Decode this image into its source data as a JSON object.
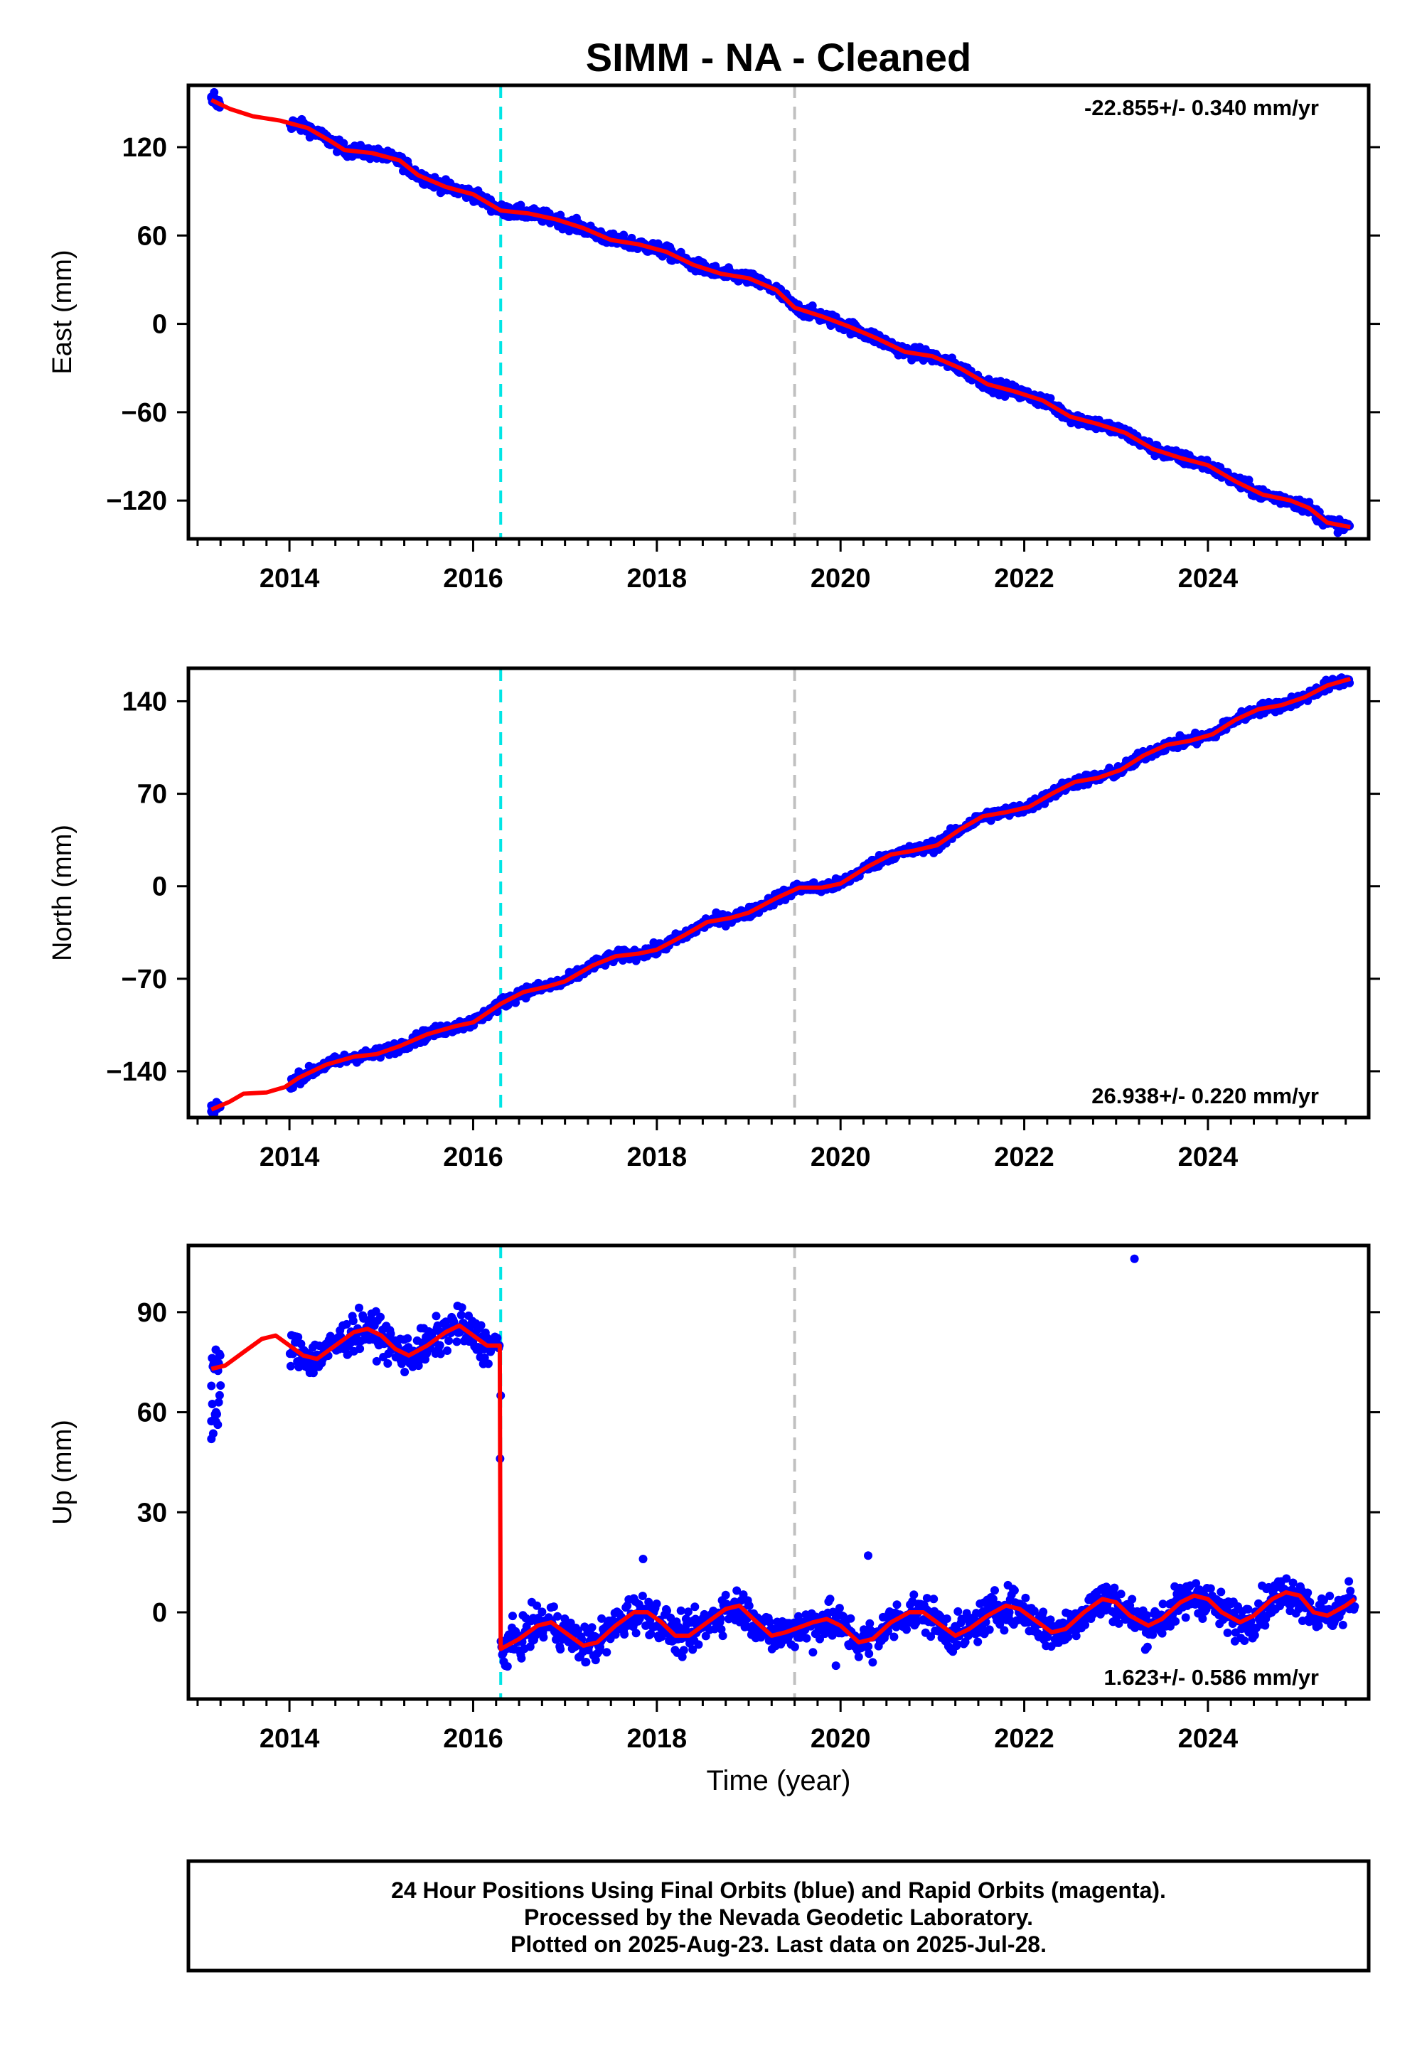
{
  "title": "SIMM  - NA - Cleaned",
  "colors": {
    "points": "#0000ff",
    "model": "#ff0000",
    "event_cyan": "#00e5e5",
    "event_gray": "#c0c0c0"
  },
  "chart_data": [
    {
      "type": "scatter",
      "ylabel": "East (mm)",
      "xlabel": "",
      "rate": "-22.855+/- 0.340 mm/yr",
      "xlim": [
        2012.9,
        2025.75
      ],
      "ylim": [
        -146,
        162
      ],
      "yticks": [
        120,
        60,
        0,
        -60,
        -120
      ],
      "xticks": [
        2014,
        2016,
        2018,
        2020,
        2022,
        2024
      ],
      "events": [
        2016.3,
        2019.5
      ],
      "gap": [
        2013.25,
        2014.0
      ],
      "model": [
        [
          2013.15,
          152
        ],
        [
          2013.35,
          146
        ],
        [
          2013.6,
          141
        ],
        [
          2013.9,
          138
        ],
        [
          2014.2,
          133
        ],
        [
          2014.45,
          124
        ],
        [
          2014.6,
          118
        ],
        [
          2014.9,
          116
        ],
        [
          2015.2,
          111
        ],
        [
          2015.4,
          101
        ],
        [
          2015.7,
          93
        ],
        [
          2016.0,
          88
        ],
        [
          2016.3,
          77
        ],
        [
          2016.6,
          75
        ],
        [
          2016.9,
          71
        ],
        [
          2017.2,
          65
        ],
        [
          2017.5,
          57
        ],
        [
          2017.8,
          54
        ],
        [
          2018.1,
          49
        ],
        [
          2018.4,
          40
        ],
        [
          2018.7,
          34
        ],
        [
          2019.0,
          31
        ],
        [
          2019.3,
          23
        ],
        [
          2019.5,
          11
        ],
        [
          2019.8,
          5
        ],
        [
          2020.1,
          -2
        ],
        [
          2020.4,
          -10
        ],
        [
          2020.7,
          -19
        ],
        [
          2021.0,
          -22
        ],
        [
          2021.3,
          -30
        ],
        [
          2021.6,
          -41
        ],
        [
          2021.9,
          -46
        ],
        [
          2022.2,
          -52
        ],
        [
          2022.5,
          -63
        ],
        [
          2022.8,
          -68
        ],
        [
          2023.1,
          -74
        ],
        [
          2023.4,
          -85
        ],
        [
          2023.7,
          -91
        ],
        [
          2024.0,
          -96
        ],
        [
          2024.3,
          -107
        ],
        [
          2024.6,
          -116
        ],
        [
          2024.9,
          -120
        ],
        [
          2025.1,
          -125
        ],
        [
          2025.3,
          -135
        ],
        [
          2025.55,
          -138
        ]
      ],
      "noise": 3,
      "outliers": []
    },
    {
      "type": "scatter",
      "ylabel": "North (mm)",
      "xlabel": "",
      "rate": "26.938+/- 0.220 mm/yr",
      "xlim": [
        2012.9,
        2025.75
      ],
      "ylim": [
        -175,
        165
      ],
      "yticks": [
        140,
        70,
        0,
        -70,
        -140
      ],
      "xticks": [
        2014,
        2016,
        2018,
        2020,
        2022,
        2024
      ],
      "events": [
        2016.3,
        2019.5
      ],
      "gap": [
        2013.25,
        2014.0
      ],
      "model": [
        [
          2013.15,
          -169
        ],
        [
          2013.35,
          -163
        ],
        [
          2013.5,
          -157
        ],
        [
          2013.75,
          -156
        ],
        [
          2013.95,
          -152
        ],
        [
          2014.1,
          -145
        ],
        [
          2014.4,
          -135
        ],
        [
          2014.7,
          -129
        ],
        [
          2014.95,
          -127
        ],
        [
          2015.2,
          -121
        ],
        [
          2015.5,
          -112
        ],
        [
          2015.8,
          -106
        ],
        [
          2016.0,
          -103
        ],
        [
          2016.3,
          -89
        ],
        [
          2016.55,
          -80
        ],
        [
          2016.8,
          -76
        ],
        [
          2017.0,
          -72
        ],
        [
          2017.3,
          -60
        ],
        [
          2017.55,
          -53
        ],
        [
          2017.8,
          -51
        ],
        [
          2018.0,
          -48
        ],
        [
          2018.3,
          -37
        ],
        [
          2018.55,
          -27
        ],
        [
          2018.8,
          -24
        ],
        [
          2019.0,
          -20
        ],
        [
          2019.3,
          -9
        ],
        [
          2019.55,
          -1
        ],
        [
          2019.8,
          -1
        ],
        [
          2020.0,
          2
        ],
        [
          2020.3,
          15
        ],
        [
          2020.55,
          24
        ],
        [
          2020.8,
          27
        ],
        [
          2021.05,
          31
        ],
        [
          2021.3,
          43
        ],
        [
          2021.55,
          53
        ],
        [
          2021.8,
          56
        ],
        [
          2022.05,
          60
        ],
        [
          2022.3,
          70
        ],
        [
          2022.55,
          79
        ],
        [
          2022.8,
          82
        ],
        [
          2023.05,
          88
        ],
        [
          2023.3,
          99
        ],
        [
          2023.55,
          107
        ],
        [
          2023.8,
          110
        ],
        [
          2024.05,
          115
        ],
        [
          2024.3,
          126
        ],
        [
          2024.55,
          134
        ],
        [
          2024.8,
          137
        ],
        [
          2025.05,
          143
        ],
        [
          2025.3,
          152
        ],
        [
          2025.55,
          157
        ]
      ],
      "noise": 3,
      "outliers": []
    },
    {
      "type": "scatter",
      "ylabel": "Up (mm)",
      "xlabel": "Time (year)",
      "rate": "1.623+/- 0.586 mm/yr",
      "xlim": [
        2012.9,
        2025.75
      ],
      "ylim": [
        -26,
        110
      ],
      "yticks": [
        90,
        60,
        30,
        0
      ],
      "xticks": [
        2014,
        2016,
        2018,
        2020,
        2022,
        2024
      ],
      "events": [
        2016.3,
        2019.5
      ],
      "gap": [
        2013.25,
        2014.0
      ],
      "model": [
        [
          2013.15,
          73
        ],
        [
          2013.3,
          74
        ],
        [
          2013.5,
          78
        ],
        [
          2013.7,
          82
        ],
        [
          2013.85,
          83
        ],
        [
          2014.0,
          80
        ],
        [
          2014.15,
          77
        ],
        [
          2014.3,
          76
        ],
        [
          2014.5,
          80
        ],
        [
          2014.7,
          84
        ],
        [
          2014.85,
          85
        ],
        [
          2015.0,
          83
        ],
        [
          2015.15,
          79
        ],
        [
          2015.3,
          77
        ],
        [
          2015.5,
          80
        ],
        [
          2015.7,
          84
        ],
        [
          2015.85,
          86
        ],
        [
          2016.0,
          83
        ],
        [
          2016.15,
          80
        ],
        [
          2016.29,
          80
        ],
        [
          2016.3,
          -11
        ],
        [
          2016.5,
          -8
        ],
        [
          2016.7,
          -4
        ],
        [
          2016.85,
          -3
        ],
        [
          2017.0,
          -6
        ],
        [
          2017.2,
          -10
        ],
        [
          2017.35,
          -9
        ],
        [
          2017.55,
          -4
        ],
        [
          2017.75,
          0
        ],
        [
          2017.9,
          0
        ],
        [
          2018.05,
          -3
        ],
        [
          2018.2,
          -7
        ],
        [
          2018.35,
          -7
        ],
        [
          2018.55,
          -3
        ],
        [
          2018.75,
          1
        ],
        [
          2018.9,
          2
        ],
        [
          2019.05,
          -2
        ],
        [
          2019.25,
          -7
        ],
        [
          2019.4,
          -6
        ],
        [
          2019.5,
          -5
        ],
        [
          2019.7,
          -3
        ],
        [
          2019.85,
          -2
        ],
        [
          2020.0,
          -4
        ],
        [
          2020.2,
          -9
        ],
        [
          2020.35,
          -8
        ],
        [
          2020.55,
          -3
        ],
        [
          2020.75,
          0
        ],
        [
          2020.9,
          0
        ],
        [
          2021.05,
          -3
        ],
        [
          2021.25,
          -7
        ],
        [
          2021.4,
          -5
        ],
        [
          2021.6,
          -1
        ],
        [
          2021.8,
          2
        ],
        [
          2021.95,
          1
        ],
        [
          2022.1,
          -2
        ],
        [
          2022.3,
          -6
        ],
        [
          2022.45,
          -5
        ],
        [
          2022.65,
          0
        ],
        [
          2022.85,
          4
        ],
        [
          2023.0,
          3
        ],
        [
          2023.15,
          -1
        ],
        [
          2023.35,
          -4
        ],
        [
          2023.5,
          -2
        ],
        [
          2023.7,
          3
        ],
        [
          2023.85,
          5
        ],
        [
          2024.0,
          4
        ],
        [
          2024.15,
          0
        ],
        [
          2024.35,
          -3
        ],
        [
          2024.5,
          -1
        ],
        [
          2024.7,
          4
        ],
        [
          2024.85,
          6
        ],
        [
          2025.0,
          5
        ],
        [
          2025.15,
          0
        ],
        [
          2025.3,
          -1
        ],
        [
          2025.5,
          2
        ],
        [
          2025.6,
          4
        ]
      ],
      "noise": 4,
      "outliers": [
        [
          2013.15,
          52
        ],
        [
          2013.2,
          60
        ],
        [
          2013.25,
          68
        ],
        [
          2023.2,
          106
        ],
        [
          2016.3,
          65
        ],
        [
          2016.35,
          -16
        ],
        [
          2019.95,
          -16
        ],
        [
          2020.35,
          -15
        ],
        [
          2019.7,
          -12
        ],
        [
          2017.85,
          16
        ],
        [
          2020.3,
          17
        ]
      ]
    }
  ],
  "footer": {
    "line1": "24 Hour Positions Using Final Orbits (blue) and Rapid Orbits (magenta).",
    "line2": "Processed by the Nevada Geodetic Laboratory.",
    "line3": "Plotted on 2025-Aug-23. Last data on 2025-Jul-28."
  }
}
